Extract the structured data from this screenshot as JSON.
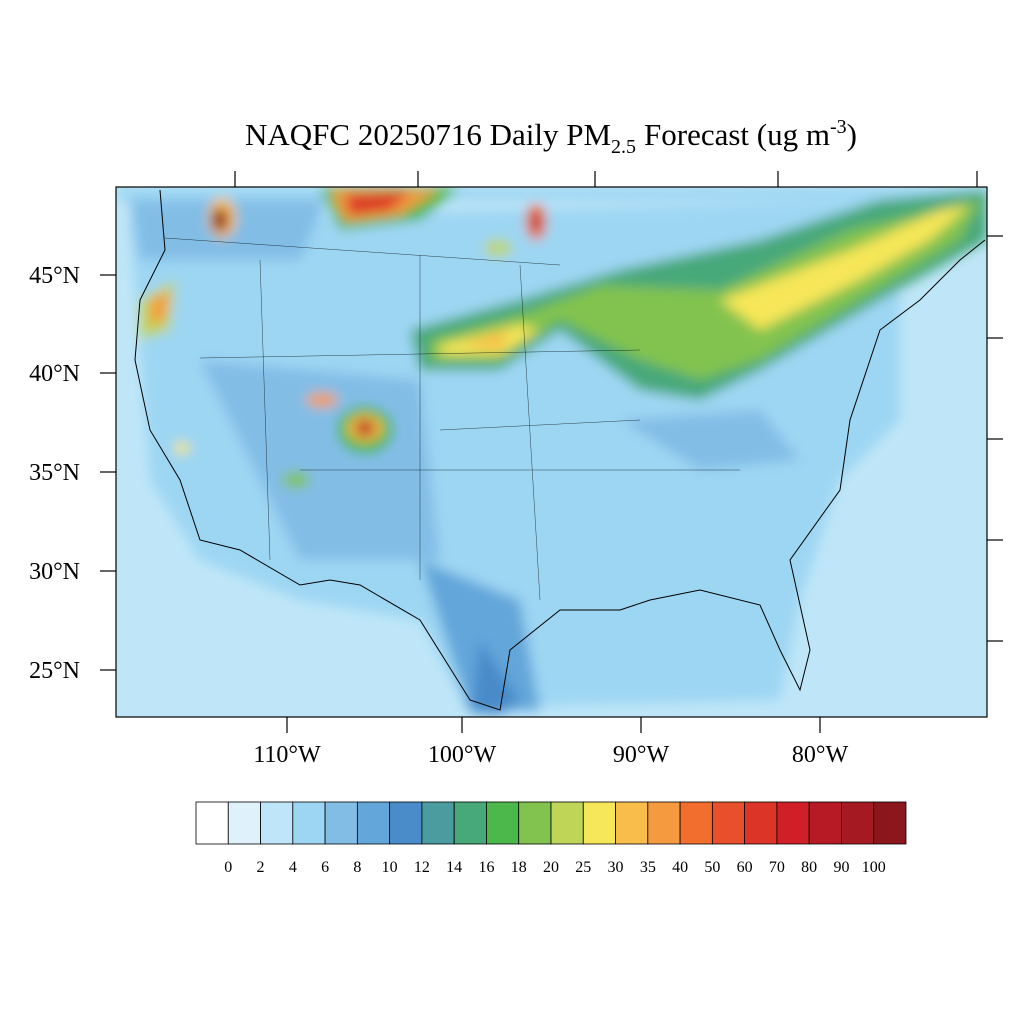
{
  "title": {
    "main": "NAQFC 20250716 Daily PM",
    "sub": "2.5",
    "mid": "Forecast (ug m",
    "sup": "-3",
    "end": ")"
  },
  "map": {
    "lat_labels": [
      "45°N",
      "40°N",
      "35°N",
      "30°N",
      "25°N"
    ],
    "lon_labels": [
      "110°W",
      "100°W",
      "90°W",
      "80°W"
    ]
  },
  "colorbar": {
    "colors": [
      "#ffffff",
      "#dff2fb",
      "#bfe6f8",
      "#9dd6f3",
      "#82bde6",
      "#63a6da",
      "#4a8bc9",
      "#4b9c9f",
      "#47a87a",
      "#4cb74a",
      "#82c350",
      "#bfd557",
      "#f6e659",
      "#f8bd4a",
      "#f69a3f",
      "#f26e2f",
      "#e8502c",
      "#dc3426",
      "#d01f27",
      "#b71a25",
      "#a51a22",
      "#8b161c"
    ],
    "labels": [
      0,
      2,
      4,
      6,
      8,
      10,
      12,
      14,
      16,
      18,
      20,
      25,
      30,
      35,
      40,
      50,
      60,
      70,
      80,
      90,
      100
    ]
  }
}
